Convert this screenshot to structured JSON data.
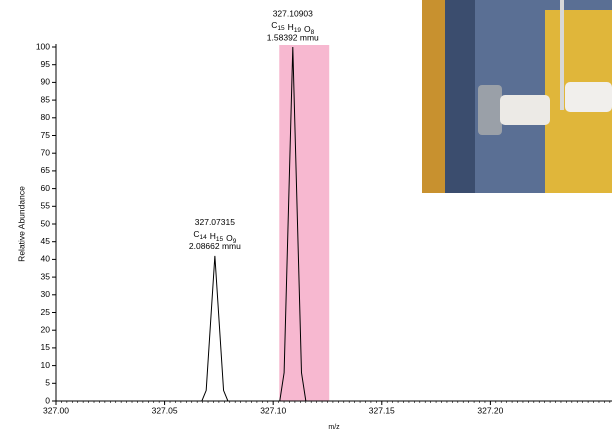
{
  "chart_data": {
    "type": "line",
    "x_label": "m/z",
    "y_label": "Relative Abundance",
    "xlim": [
      327.0,
      327.256
    ],
    "ylim": [
      0,
      100
    ],
    "xticks": [
      {
        "value": 327.0,
        "label": "327.00"
      },
      {
        "value": 327.05,
        "label": "327.05"
      },
      {
        "value": 327.1,
        "label": "327.10"
      },
      {
        "value": 327.15,
        "label": "327.15"
      },
      {
        "value": 327.2,
        "label": "327.20"
      }
    ],
    "yticks": [
      0,
      5,
      10,
      15,
      20,
      25,
      30,
      35,
      40,
      45,
      50,
      55,
      60,
      65,
      70,
      75,
      80,
      85,
      90,
      95,
      100
    ],
    "highlight": [
      327.1028,
      327.1258
    ],
    "highlight_color": "#f7b8d0",
    "series": [
      {
        "color": "#000000",
        "x": [
          327.0,
          327.06715,
          327.06915,
          327.07115,
          327.07315,
          327.07515,
          327.07715,
          327.07915,
          327.10303,
          327.10503,
          327.10703,
          327.10903,
          327.11103,
          327.11303,
          327.11503,
          327.256
        ],
        "values": [
          0,
          0,
          3,
          22,
          41,
          22,
          3,
          0,
          0,
          8,
          54,
          100,
          54,
          8,
          0,
          0
        ]
      }
    ],
    "annotations": [
      {
        "x": 327.07315,
        "formula": [
          {
            "symbol": "C",
            "count": 14
          },
          {
            "symbol": "H",
            "count": 15
          },
          {
            "symbol": "O",
            "count": 9
          }
        ],
        "error": "2.08662 mmu"
      },
      {
        "x": 327.10903,
        "formula": [
          {
            "symbol": "C",
            "count": 15
          },
          {
            "symbol": "H",
            "count": 19
          },
          {
            "symbol": "O",
            "count": 8
          }
        ],
        "error": "1.58392 mmu"
      }
    ]
  }
}
